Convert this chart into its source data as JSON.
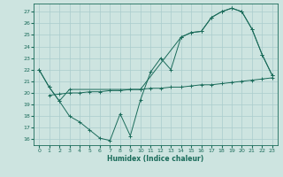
{
  "title": "",
  "xlabel": "Humidex (Indice chaleur)",
  "bg_color": "#cde4e0",
  "line_color": "#1a6b5a",
  "grid_color": "#aacccc",
  "xlim": [
    -0.5,
    23.5
  ],
  "ylim": [
    15.5,
    27.7
  ],
  "xticks": [
    0,
    1,
    2,
    3,
    4,
    5,
    6,
    7,
    8,
    9,
    10,
    11,
    12,
    13,
    14,
    15,
    16,
    17,
    18,
    19,
    20,
    21,
    22,
    23
  ],
  "yticks": [
    16,
    17,
    18,
    19,
    20,
    21,
    22,
    23,
    24,
    25,
    26,
    27
  ],
  "curve1_x": [
    0,
    1,
    2,
    3,
    4,
    5,
    6,
    7,
    8,
    9,
    10,
    11,
    12,
    13,
    14,
    15,
    16,
    17,
    18,
    19,
    20,
    21,
    22,
    23
  ],
  "curve1_y": [
    22.0,
    20.5,
    19.3,
    18.0,
    17.5,
    16.8,
    16.1,
    15.9,
    18.2,
    16.3,
    19.4,
    21.8,
    23.0,
    22.0,
    24.8,
    25.2,
    25.3,
    26.5,
    27.0,
    27.3,
    27.0,
    25.5,
    23.3,
    21.5
  ],
  "curve2_x": [
    0,
    1,
    2,
    3,
    10,
    14,
    15,
    16,
    17,
    18,
    19,
    20,
    21,
    22,
    23
  ],
  "curve2_y": [
    22.0,
    20.5,
    19.3,
    20.3,
    20.3,
    24.8,
    25.2,
    25.3,
    26.5,
    27.0,
    27.3,
    27.0,
    25.5,
    23.3,
    21.5
  ],
  "curve3_x": [
    1,
    2,
    3,
    4,
    5,
    6,
    7,
    8,
    9,
    10,
    11,
    12,
    13,
    14,
    15,
    16,
    17,
    18,
    19,
    20,
    21,
    22,
    23
  ],
  "curve3_y": [
    19.8,
    19.9,
    20.0,
    20.0,
    20.1,
    20.1,
    20.2,
    20.2,
    20.3,
    20.3,
    20.4,
    20.4,
    20.5,
    20.5,
    20.6,
    20.7,
    20.7,
    20.8,
    20.9,
    21.0,
    21.1,
    21.2,
    21.3
  ]
}
